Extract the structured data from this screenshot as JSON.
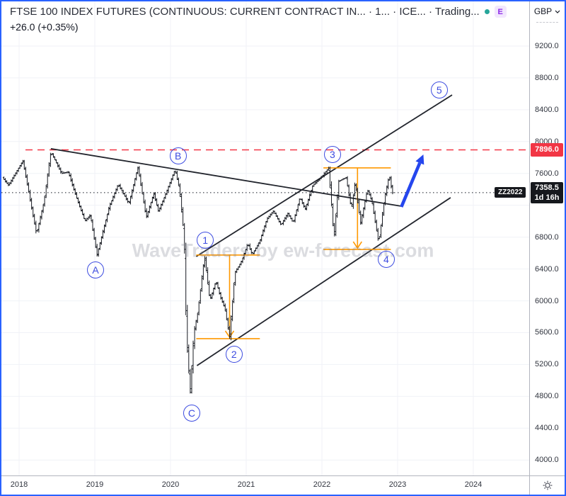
{
  "header": {
    "title": "FTSE 100 INDEX FUTURES (CONTINUOUS: CURRENT CONTRACT IN... · 1... · ICE... · Trading...",
    "status_dot_color": "#26a69a",
    "exchange_badge": "E",
    "change_text": "+26.0 (+0.35%)",
    "currency": "GBP"
  },
  "watermark": "WaveTraders by ew-forecast.com",
  "tools": {
    "zz_label": "ZZ2022"
  },
  "price_axis": {
    "ticks": [
      9200,
      8800,
      8400,
      8000,
      7600,
      6800,
      6400,
      6000,
      5600,
      5200,
      4800,
      4400,
      4000
    ],
    "alert_badge": {
      "price": 7896.0,
      "color": "#f23645"
    },
    "last_badge": {
      "price": 7358.5,
      "countdown": "1d 16h",
      "color": "#16181d"
    }
  },
  "time_axis": {
    "ticks": [
      2018,
      2019,
      2020,
      2021,
      2022,
      2023,
      2024
    ]
  },
  "colors": {
    "bars": "#181b22",
    "trendline": "#22252d",
    "wave_label": "#3d4ce0",
    "arrow": "#2546ee",
    "measure": "#ff9800",
    "resistance": "#f23645",
    "grid": "#f0f2f7"
  },
  "chart_data": {
    "type": "ohlc-bar",
    "x_domain_years": [
      2017.75,
      2024.74
    ],
    "y_domain_price": [
      3790,
      9760
    ],
    "grid": true,
    "price_path": [
      [
        2017.78,
        7550
      ],
      [
        2017.86,
        7450
      ],
      [
        2018.05,
        7760
      ],
      [
        2018.23,
        6840
      ],
      [
        2018.33,
        7250
      ],
      [
        2018.42,
        7875
      ],
      [
        2018.56,
        7600
      ],
      [
        2018.65,
        7620
      ],
      [
        2018.75,
        7320
      ],
      [
        2018.87,
        7000
      ],
      [
        2018.94,
        7080
      ],
      [
        2019.03,
        6575
      ],
      [
        2019.19,
        7180
      ],
      [
        2019.31,
        7465
      ],
      [
        2019.45,
        7220
      ],
      [
        2019.57,
        7680
      ],
      [
        2019.68,
        7045
      ],
      [
        2019.78,
        7350
      ],
      [
        2019.84,
        7120
      ],
      [
        2019.96,
        7400
      ],
      [
        2020.06,
        7650
      ],
      [
        2020.12,
        7400
      ],
      [
        2020.18,
        6800
      ],
      [
        2020.21,
        5600
      ],
      [
        2020.26,
        4840
      ],
      [
        2020.31,
        5600
      ],
      [
        2020.36,
        5850
      ],
      [
        2020.45,
        6560
      ],
      [
        2020.52,
        6000
      ],
      [
        2020.6,
        6250
      ],
      [
        2020.66,
        6050
      ],
      [
        2020.72,
        5900
      ],
      [
        2020.78,
        5550
      ],
      [
        2020.85,
        6350
      ],
      [
        2020.94,
        6500
      ],
      [
        2021.02,
        6720
      ],
      [
        2021.08,
        6580
      ],
      [
        2021.18,
        6750
      ],
      [
        2021.27,
        7020
      ],
      [
        2021.36,
        7130
      ],
      [
        2021.46,
        6950
      ],
      [
        2021.55,
        7100
      ],
      [
        2021.62,
        6980
      ],
      [
        2021.71,
        7300
      ],
      [
        2021.78,
        7150
      ],
      [
        2021.88,
        7450
      ],
      [
        2022.0,
        7560
      ],
      [
        2022.09,
        7670
      ],
      [
        2022.16,
        6780
      ],
      [
        2022.22,
        7500
      ],
      [
        2022.32,
        7550
      ],
      [
        2022.39,
        7150
      ],
      [
        2022.44,
        7500
      ],
      [
        2022.51,
        6970
      ],
      [
        2022.6,
        7400
      ],
      [
        2022.66,
        7250
      ],
      [
        2022.75,
        6730
      ],
      [
        2022.83,
        7300
      ],
      [
        2022.89,
        7580
      ],
      [
        2022.93,
        7358.5
      ]
    ],
    "levels": {
      "resistance_dashed_red": 7896.0,
      "last_price_dotted": 7358.5
    },
    "trendlines": [
      {
        "name": "descending-resistance",
        "from": [
          2018.42,
          7910
        ],
        "to": [
          2023.05,
          7189
        ]
      },
      {
        "name": "channel-upper",
        "from": [
          2020.34,
          6557
        ],
        "to": [
          2023.72,
          8586
        ]
      },
      {
        "name": "channel-lower",
        "from": [
          2020.35,
          5186
        ],
        "to": [
          2023.7,
          7296
        ]
      }
    ],
    "projection_arrow": {
      "from": [
        2023.05,
        7180
      ],
      "to": [
        2023.34,
        7838
      ]
    },
    "measurement_tools": [
      {
        "name": "wave2-retracement",
        "top_price": 6575,
        "bottom_price": 5525,
        "arrow_x": 2020.78,
        "x_start": 2020.34,
        "x_end": 2021.18
      },
      {
        "name": "wave4-retracement",
        "top_price": 7670,
        "bottom_price": 6645,
        "arrow_x": 2022.47,
        "x_start": 2022.02,
        "x_end": 2022.91
      }
    ],
    "wave_labels": [
      {
        "text": "A",
        "x": 2019.0,
        "price": 6397
      },
      {
        "text": "B",
        "x": 2020.09,
        "price": 7829
      },
      {
        "text": "C",
        "x": 2020.27,
        "price": 4599
      },
      {
        "text": "1",
        "x": 2020.45,
        "price": 6770
      },
      {
        "text": "2",
        "x": 2020.83,
        "price": 5337
      },
      {
        "text": "3",
        "x": 2022.13,
        "price": 7847
      },
      {
        "text": "4",
        "x": 2022.84,
        "price": 6530
      },
      {
        "text": "5",
        "x": 2023.54,
        "price": 8657
      }
    ]
  }
}
